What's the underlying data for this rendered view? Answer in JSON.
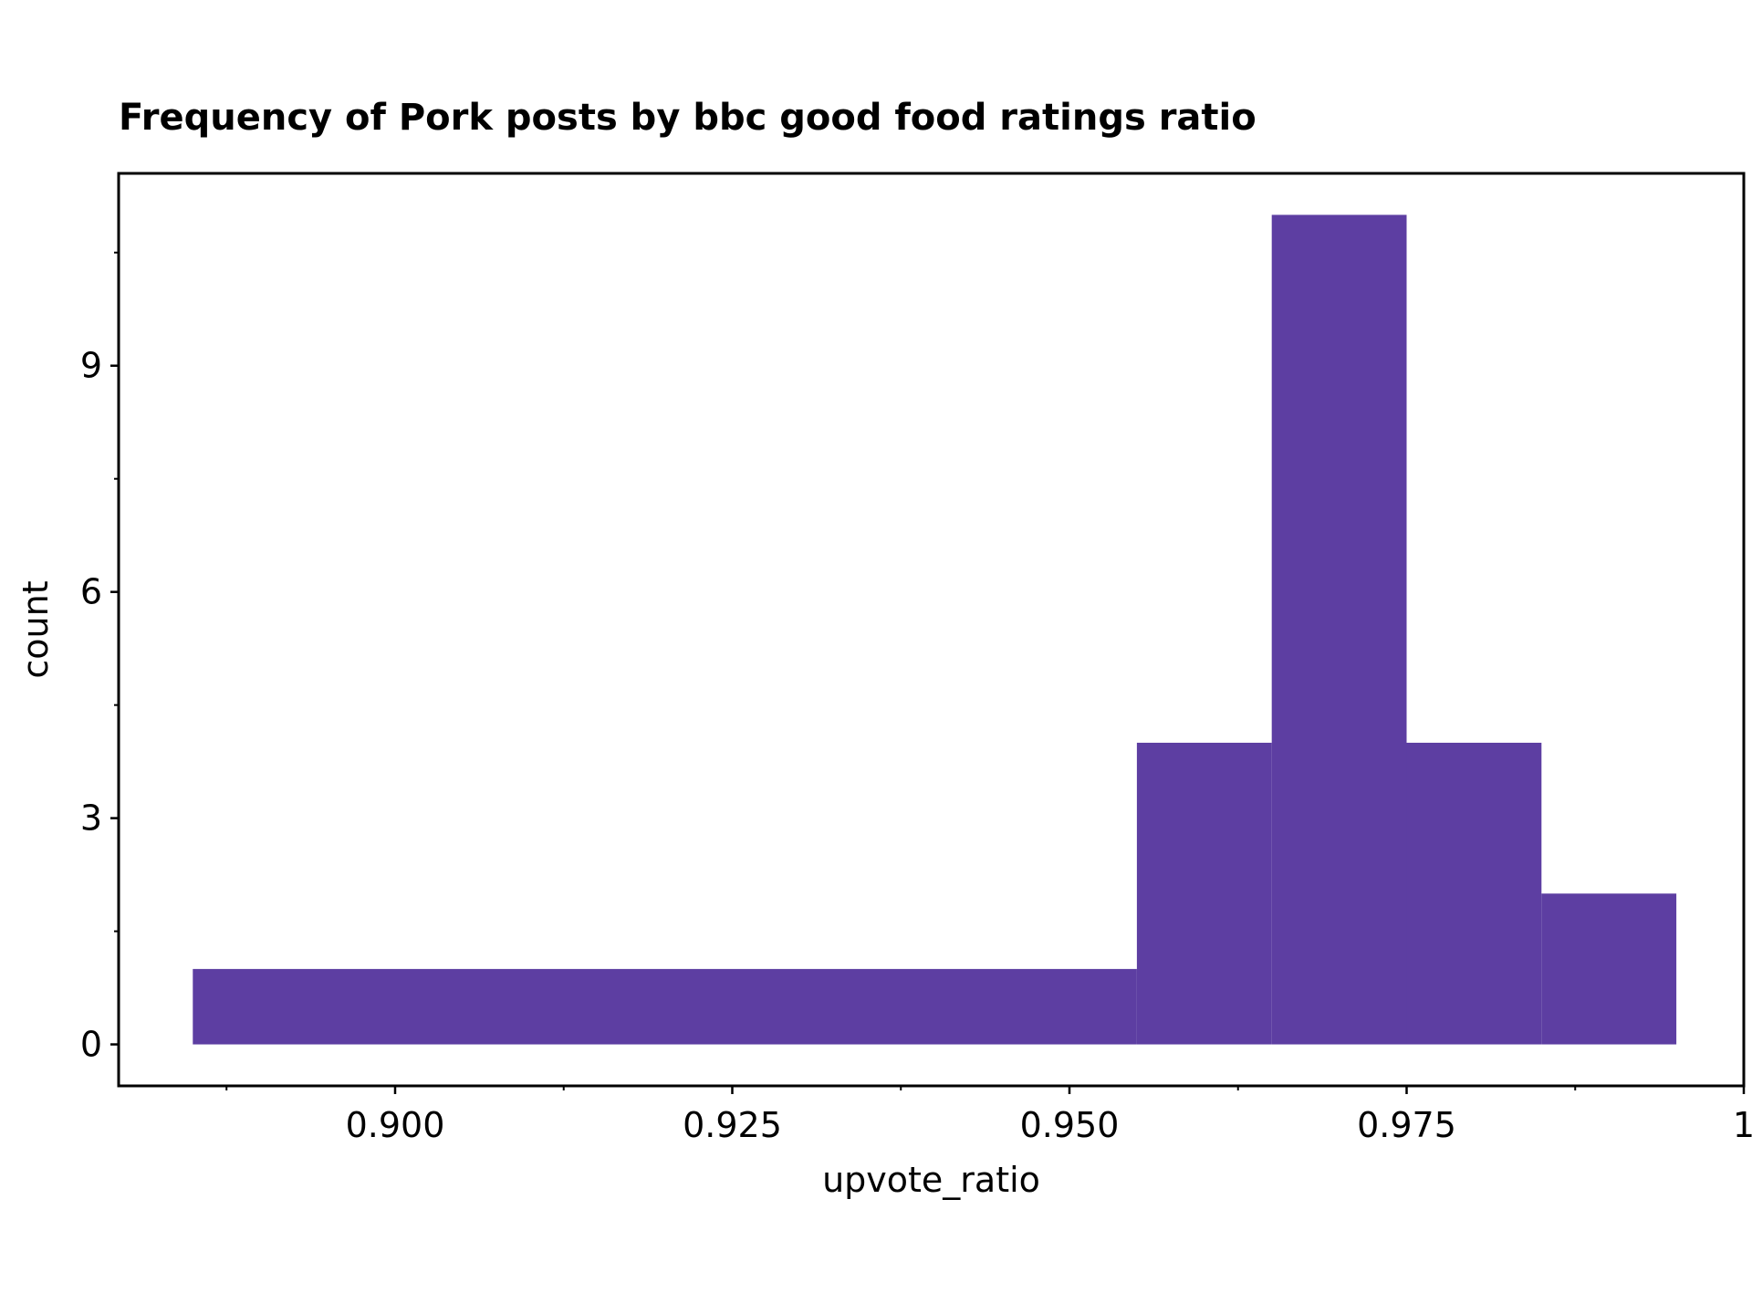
{
  "chart_data": {
    "type": "bar",
    "title": "Frequency of Pork posts by bbc good food ratings ratio",
    "xlabel": "upvote_ratio",
    "ylabel": "count",
    "xlim": [
      0.8795,
      1.0
    ],
    "ylim": [
      -0.55,
      11.55
    ],
    "x_ticks": [
      {
        "value": 0.9,
        "label": "0.900"
      },
      {
        "value": 0.925,
        "label": "0.925"
      },
      {
        "value": 0.95,
        "label": "0.950"
      },
      {
        "value": 0.975,
        "label": "0.975"
      },
      {
        "value": 1.0,
        "label": "1"
      }
    ],
    "x_minor_ticks": [
      0.8875,
      0.9125,
      0.9375,
      0.9625,
      0.9875
    ],
    "y_ticks": [
      {
        "value": 0,
        "label": "0"
      },
      {
        "value": 3,
        "label": "3"
      },
      {
        "value": 6,
        "label": "6"
      },
      {
        "value": 9,
        "label": "9"
      }
    ],
    "y_minor_ticks": [
      1.5,
      4.5,
      7.5,
      10.5
    ],
    "bins": [
      {
        "x0": 0.885,
        "x1": 0.955,
        "count": 1
      },
      {
        "x0": 0.955,
        "x1": 0.965,
        "count": 4
      },
      {
        "x0": 0.965,
        "x1": 0.975,
        "count": 11
      },
      {
        "x0": 0.975,
        "x1": 0.985,
        "count": 4
      },
      {
        "x0": 0.985,
        "x1": 0.995,
        "count": 2
      }
    ],
    "bar_color": "#5d3ea2",
    "grid": false,
    "legend": "none"
  }
}
